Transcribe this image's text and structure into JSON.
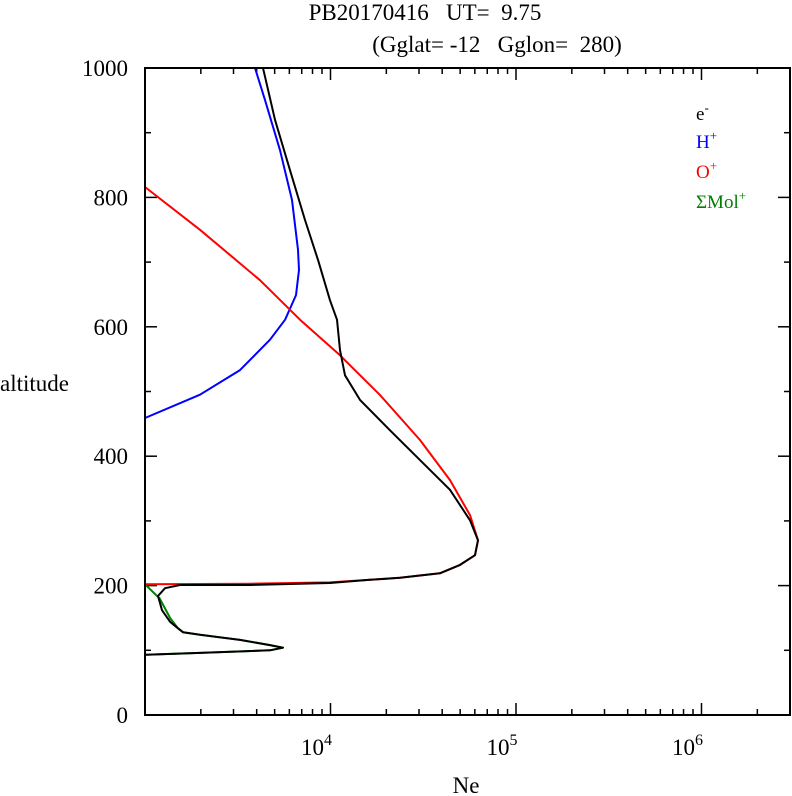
{
  "chart_data": {
    "type": "line",
    "title_line1": "PB20170416   UT=  9.75",
    "title_line2": "(Gglat= -12   Gglon=  280)",
    "xlabel": "Ne",
    "ylabel": "altitude",
    "xscale": "log",
    "xlim": [
      1000,
      3000000
    ],
    "ylim": [
      0,
      1000
    ],
    "yticks": [
      0,
      200,
      400,
      600,
      800,
      1000
    ],
    "ytick_labels": [
      "0",
      "200",
      "400",
      "600",
      "800",
      "1000"
    ],
    "xticks": [
      10000,
      100000,
      1000000
    ],
    "xtick_labels": [
      {
        "base": "10",
        "exp": "4"
      },
      {
        "base": "10",
        "exp": "5"
      },
      {
        "base": "10",
        "exp": "6"
      }
    ],
    "legend_placement": "top-right",
    "series": [
      {
        "name": "e-",
        "label_base": "e",
        "label_sup": "-",
        "color": "#000000",
        "points": [
          [
            4325,
            1000
          ],
          [
            5020,
            920
          ],
          [
            6050,
            842
          ],
          [
            7290,
            765
          ],
          [
            8570,
            703
          ],
          [
            9940,
            641
          ],
          [
            10840,
            611
          ],
          [
            11250,
            564
          ],
          [
            11970,
            525
          ],
          [
            14420,
            487
          ],
          [
            20930,
            440
          ],
          [
            30360,
            394
          ],
          [
            44060,
            348
          ],
          [
            56500,
            301
          ],
          [
            62370,
            270
          ],
          [
            60100,
            247
          ],
          [
            49900,
            232
          ],
          [
            38900,
            219
          ],
          [
            23700,
            212
          ],
          [
            16330,
            209
          ],
          [
            9940,
            204
          ],
          [
            3680,
            201
          ],
          [
            1545,
            201
          ],
          [
            1282,
            196
          ],
          [
            1175,
            184
          ],
          [
            1235,
            162
          ],
          [
            1365,
            144
          ],
          [
            1506,
            134
          ],
          [
            1603,
            128
          ],
          [
            1979,
            124
          ],
          [
            3250,
            116
          ],
          [
            4720,
            108
          ],
          [
            5545,
            104
          ],
          [
            4720,
            100
          ],
          [
            1979,
            96
          ],
          [
            1012,
            93
          ]
        ]
      },
      {
        "name": "H+",
        "label_base": "H",
        "label_sup": "+",
        "color": "#0000ff",
        "points": [
          [
            3917,
            1000
          ],
          [
            4430,
            951
          ],
          [
            5340,
            873
          ],
          [
            6200,
            796
          ],
          [
            6680,
            719
          ],
          [
            6760,
            688
          ],
          [
            6520,
            649
          ],
          [
            5690,
            611
          ],
          [
            4720,
            580
          ],
          [
            3250,
            533
          ],
          [
            1979,
            495
          ],
          [
            1000,
            459
          ]
        ]
      },
      {
        "name": "O+",
        "label_base": "O",
        "label_sup": "+",
        "color": "#ff0000",
        "points": [
          [
            1000,
            816
          ],
          [
            1979,
            750
          ],
          [
            4170,
            672
          ],
          [
            6850,
            611
          ],
          [
            11250,
            556
          ],
          [
            18420,
            495
          ],
          [
            30360,
            425
          ],
          [
            44060,
            363
          ],
          [
            56500,
            309
          ],
          [
            62370,
            270
          ],
          [
            60100,
            247
          ],
          [
            49900,
            232
          ],
          [
            38900,
            219
          ],
          [
            23700,
            212
          ],
          [
            9940,
            205
          ],
          [
            3680,
            203
          ],
          [
            1000,
            202
          ]
        ]
      },
      {
        "name": "ΣMol+",
        "label_base": "ΣMol",
        "label_sup": "+",
        "color": "#008000",
        "points": [
          [
            1000,
            202
          ],
          [
            1200,
            180
          ],
          [
            1365,
            150
          ],
          [
            1506,
            134
          ],
          [
            1603,
            128
          ],
          [
            1979,
            124
          ],
          [
            3250,
            116
          ],
          [
            4720,
            108
          ],
          [
            5545,
            104
          ],
          [
            4720,
            100
          ],
          [
            1979,
            96
          ],
          [
            1012,
            93
          ]
        ]
      }
    ]
  }
}
